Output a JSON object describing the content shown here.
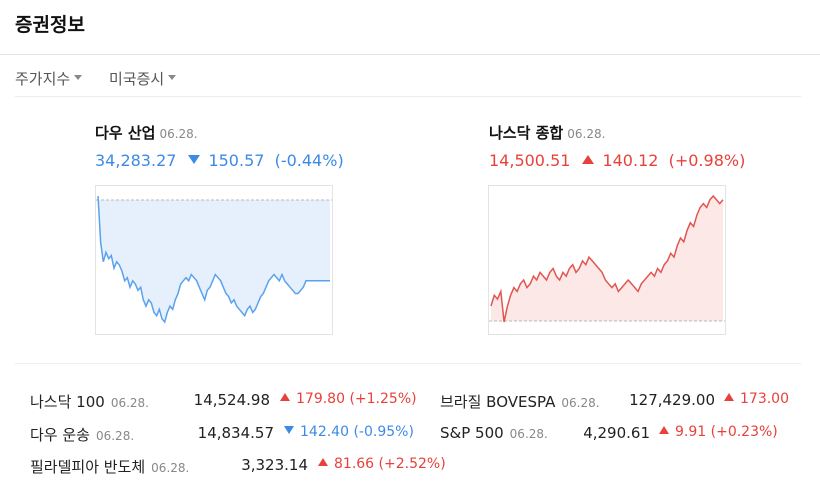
{
  "header": {
    "title": "증권정보"
  },
  "tabs": [
    {
      "label": "주가지수"
    },
    {
      "label": "미국증시"
    }
  ],
  "colors": {
    "up": "#e8413b",
    "down": "#3d8ae6"
  },
  "dow": {
    "name": "다우 산업",
    "date": "06.28.",
    "value": "34,283.27",
    "change": "150.57",
    "pct": "(-0.44%)",
    "direction": "down"
  },
  "nasdaq": {
    "name": "나스닥 종합",
    "date": "06.28.",
    "value": "14,500.51",
    "change": "140.12",
    "pct": "(+0.98%)",
    "direction": "up"
  },
  "chart_data": [
    {
      "type": "area",
      "series": [
        {
          "values": [
            34434,
            34360,
            34330,
            34345,
            34335,
            34340,
            34320,
            34330,
            34325,
            34315,
            34300,
            34305,
            34290,
            34300,
            34295,
            34285,
            34290,
            34270,
            34260,
            34270,
            34265,
            34250,
            34245,
            34255,
            34240,
            34235,
            34250,
            34260,
            34255,
            34270,
            34280,
            34295,
            34300,
            34305,
            34300,
            34310,
            34305,
            34300,
            34290,
            34280,
            34270,
            34285,
            34290,
            34300,
            34310,
            34305,
            34300,
            34290,
            34280,
            34275,
            34265,
            34270,
            34260,
            34255,
            34250,
            34245,
            34255,
            34260,
            34250,
            34255,
            34265,
            34275,
            34280,
            34290,
            34300,
            34305,
            34310,
            34305,
            34300,
            34310,
            34300,
            34295,
            34290,
            34285,
            34280,
            34280,
            34285,
            34290,
            34300,
            34300,
            34300,
            34300,
            34300,
            34300,
            34300,
            34300,
            34300,
            34300
          ]
        }
      ]
    },
    {
      "type": "area",
      "series": [
        {
          "values": [
            14361,
            14375,
            14370,
            14380,
            14340,
            14360,
            14375,
            14385,
            14380,
            14390,
            14395,
            14385,
            14390,
            14400,
            14395,
            14405,
            14400,
            14395,
            14405,
            14410,
            14400,
            14395,
            14405,
            14400,
            14410,
            14415,
            14405,
            14410,
            14420,
            14415,
            14425,
            14420,
            14415,
            14410,
            14405,
            14395,
            14390,
            14385,
            14390,
            14380,
            14385,
            14390,
            14395,
            14390,
            14385,
            14380,
            14390,
            14395,
            14400,
            14405,
            14400,
            14410,
            14405,
            14415,
            14420,
            14430,
            14425,
            14440,
            14450,
            14445,
            14460,
            14470,
            14465,
            14480,
            14490,
            14495,
            14490,
            14500,
            14505,
            14500,
            14495,
            14500
          ]
        }
      ]
    }
  ],
  "list": [
    {
      "name": "나스닥 100",
      "date": "06.28.",
      "value": "14,524.98",
      "change": "179.80",
      "pct": "(+1.25%)",
      "direction": "up"
    },
    {
      "name": "다우 운송",
      "date": "06.28.",
      "value": "14,834.57",
      "change": "142.40",
      "pct": "(-0.95%)",
      "direction": "down"
    },
    {
      "name": "필라델피아 반도체",
      "date": "06.28.",
      "value": "3,323.14",
      "change": "81.66",
      "pct": "(+2.52%)",
      "direction": "up"
    },
    {
      "name": "브라질 BOVESPA",
      "date": "06.28.",
      "value": "127,429.00",
      "change": "173.00",
      "pct": "",
      "direction": "up"
    },
    {
      "name": "S&P 500",
      "date": "06.28.",
      "value": "4,290.61",
      "change": "9.91",
      "pct": "(+0.23%)",
      "direction": "up"
    }
  ]
}
